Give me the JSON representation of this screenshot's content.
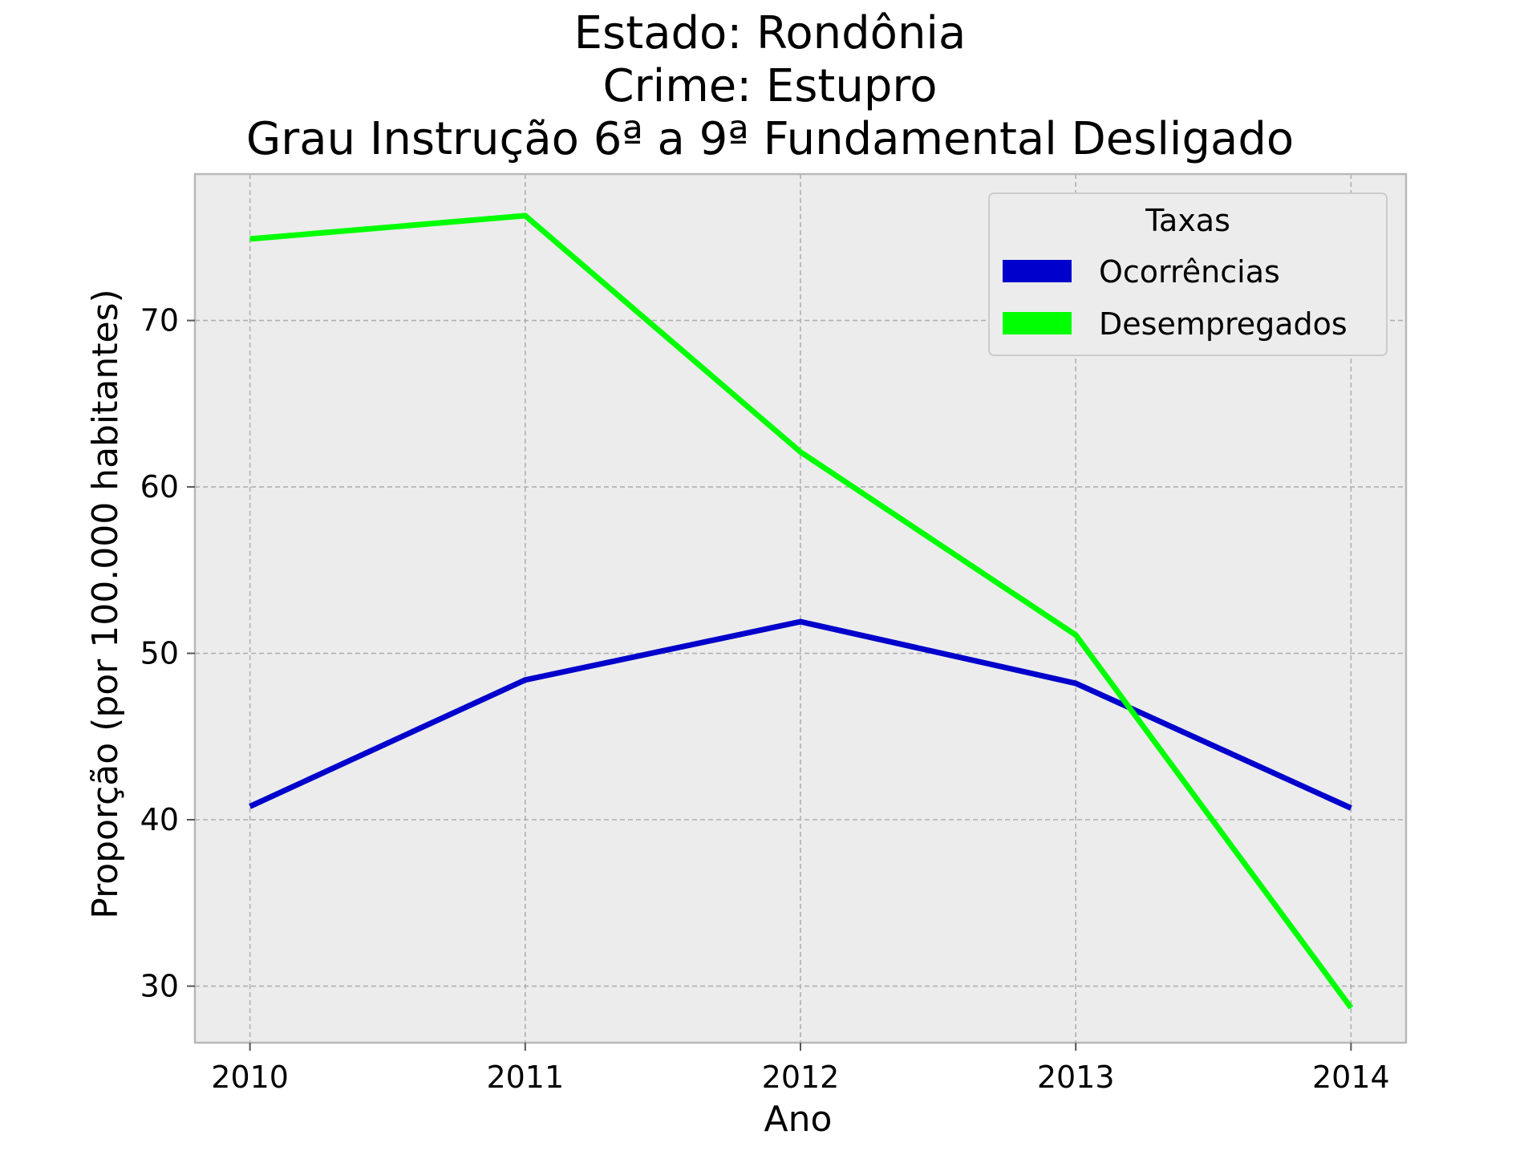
{
  "chart_data": {
    "type": "line",
    "title": [
      "Estado: Rondônia",
      "Crime: Estupro",
      "Grau Instrução  6ª a 9ª Fundamental   Desligado"
    ],
    "xlabel": "Ano",
    "ylabel": "Proporção (por 100.000 habitantes)",
    "x": [
      2010,
      2011,
      2012,
      2013,
      2014
    ],
    "x_tick_labels": [
      "2010",
      "2011",
      "2012",
      "2013",
      "2014"
    ],
    "y_ticks": [
      30,
      40,
      50,
      60,
      70
    ],
    "y_tick_labels": [
      "30",
      "40",
      "50",
      "60",
      "70"
    ],
    "xlim": [
      2009.8,
      2014.2
    ],
    "ylim": [
      26.6,
      78.8
    ],
    "grid": true,
    "legend": {
      "title": "Taxas",
      "placement": "top-right"
    },
    "series": [
      {
        "name": "Ocorrências",
        "color": "#0000cc",
        "values": [
          40.8,
          48.4,
          51.9,
          48.2,
          40.7
        ]
      },
      {
        "name": "Desempregados",
        "color": "#00ff00",
        "values": [
          74.9,
          76.3,
          62.1,
          51.1,
          28.7
        ]
      }
    ]
  },
  "colors": {
    "plot_bg": "#ececec",
    "grid": "#b0b0b0",
    "frame": "#b8b8b8"
  }
}
